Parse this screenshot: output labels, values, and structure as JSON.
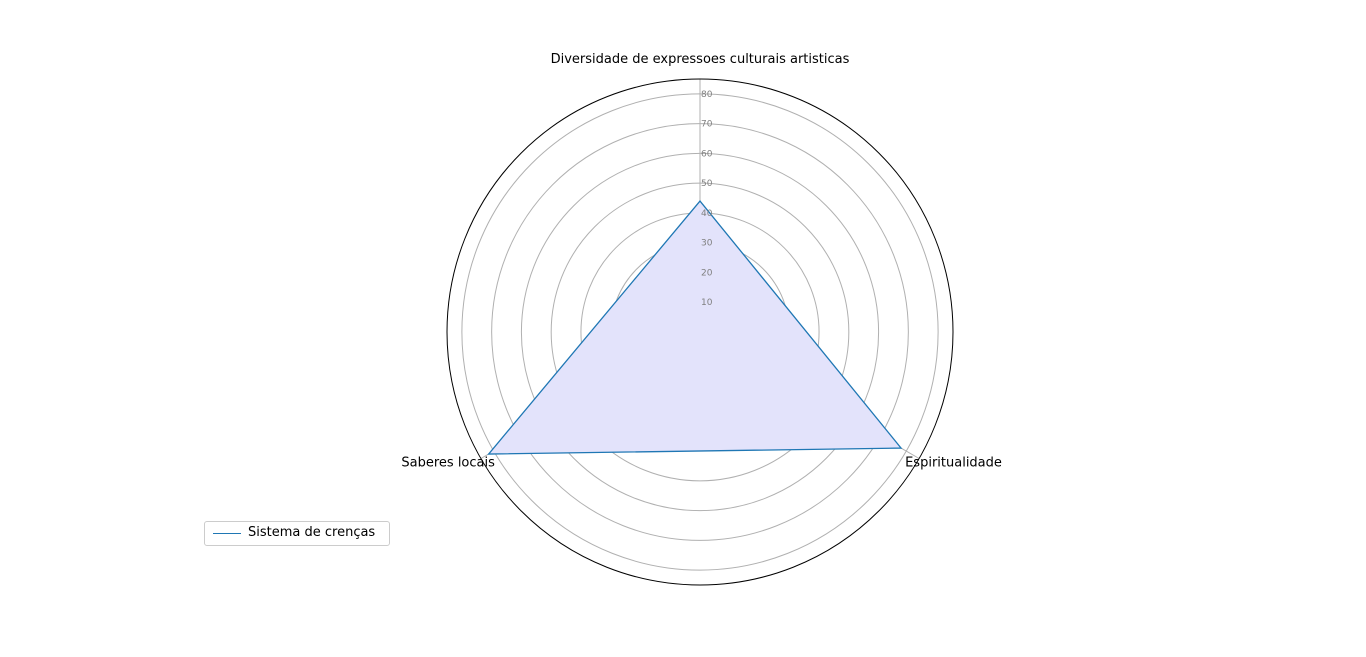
{
  "chart_data": {
    "type": "radar",
    "title": "Diversidade de expressoes culturais artisticas",
    "categories": [
      "Diversidade de expressoes culturais artisticas",
      "Espiritualidade",
      "Saberes locais"
    ],
    "rmax": 85,
    "r_ticks": [
      10,
      20,
      30,
      40,
      50,
      60,
      70,
      80
    ],
    "grid": true,
    "legend_position": "lower-left",
    "series": [
      {
        "name": "Sistema de crenças",
        "values": [
          44,
          78,
          82
        ],
        "line_color": "#1f77b4",
        "fill_color": "#e3e3fb"
      }
    ]
  },
  "legend": {
    "label": "Sistema de crenças"
  }
}
